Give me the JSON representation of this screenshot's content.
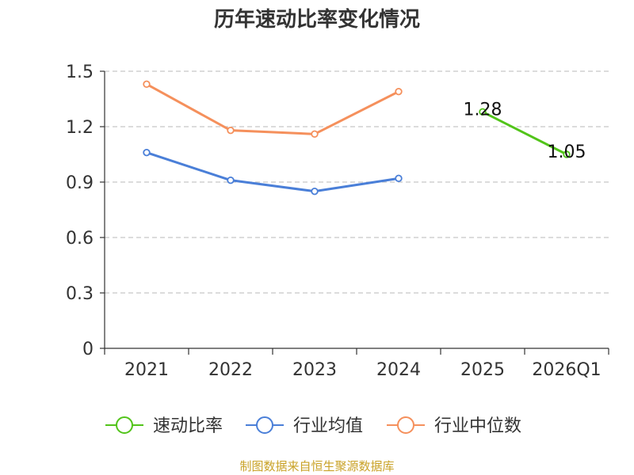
{
  "chart_data": {
    "type": "line",
    "title": "历年速动比率变化情况",
    "categories": [
      "2021",
      "2022",
      "2023",
      "2024",
      "2025",
      "2026Q1"
    ],
    "ylim": [
      0,
      1.5
    ],
    "yticks": [
      "0",
      "0.3",
      "0.6",
      "0.9",
      "1.2",
      "1.5"
    ],
    "grid": true,
    "legend_position": "bottom",
    "series": [
      {
        "name": "速动比率",
        "color": "#52c41a",
        "values": [
          null,
          null,
          null,
          null,
          1.28,
          1.05
        ],
        "labels": [
          "",
          "",
          "",
          "",
          "1.28",
          "1.05"
        ]
      },
      {
        "name": "行业均值",
        "color": "#4a7fd8",
        "values": [
          1.06,
          0.91,
          0.85,
          0.92,
          null,
          null
        ]
      },
      {
        "name": "行业中位数",
        "color": "#f5905c",
        "values": [
          1.43,
          1.18,
          1.16,
          1.39,
          null,
          null
        ]
      }
    ]
  },
  "source": "制图数据来自恒生聚源数据库"
}
